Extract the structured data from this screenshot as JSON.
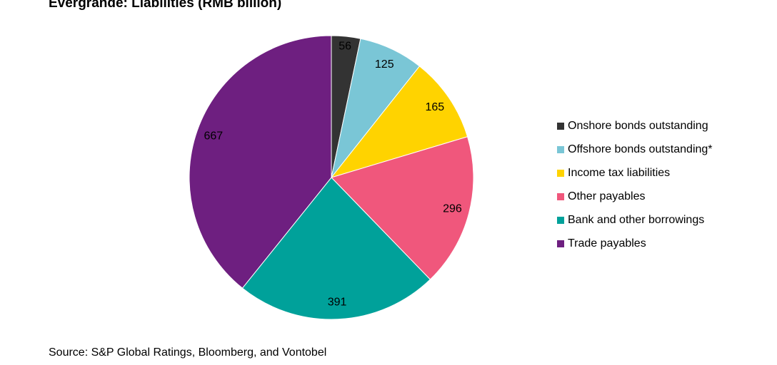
{
  "chart_data": {
    "type": "pie",
    "title": "Evergrande: Liabilities (RMB billion)",
    "slices": [
      {
        "label": "Onshore bonds outstanding",
        "value": 56,
        "color": "#333333"
      },
      {
        "label": "Offshore bonds outstanding*",
        "value": 125,
        "color": "#7ac6d6"
      },
      {
        "label": "Income tax liabilities",
        "value": 165,
        "color": "#ffd300"
      },
      {
        "label": "Other payables",
        "value": 296,
        "color": "#f0577c"
      },
      {
        "label": "Bank and other borrowings",
        "value": 391,
        "color": "#00a19a"
      },
      {
        "label": "Trade payables",
        "value": 667,
        "color": "#6e1f80"
      }
    ],
    "data_labels": true,
    "legend_position": "right"
  },
  "source": "Source: S&P Global Ratings, Bloomberg, and Vontobel"
}
